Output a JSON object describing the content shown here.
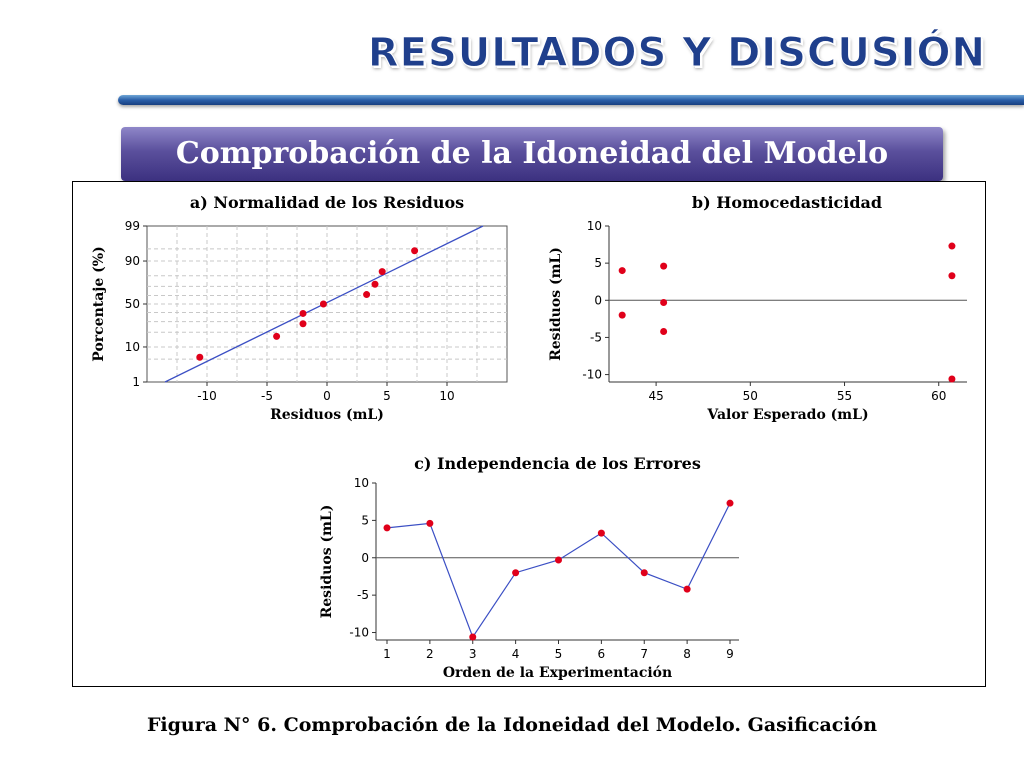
{
  "header": {
    "title": "RESULTADOS Y DISCUSIÓN",
    "subtitle": "Comprobación de la Idoneidad del Modelo"
  },
  "caption": "Figura N° 6. Comprobación de la Idoneidad del Modelo. Gasificación",
  "colors": {
    "title": "#1f3f8c",
    "banner": "#4d4392",
    "point": "#e0001a",
    "line": "#3b4fc4",
    "grid": "#c8c8c8"
  },
  "chart_data": [
    {
      "type": "scatter",
      "title": "a) Normalidad de los Residuos",
      "xlabel": "Residuos (mL)",
      "ylabel": "Porcentaje (%)",
      "scale_y": "normal-probability",
      "xlim": [
        -15,
        15
      ],
      "xticks": [
        -10,
        -5,
        0,
        5,
        10
      ],
      "ylim": [
        1,
        99
      ],
      "yticks": [
        1,
        10,
        50,
        90,
        99
      ],
      "grid": true,
      "points": [
        {
          "x": -10.6,
          "y": 5.6
        },
        {
          "x": -4.2,
          "y": 16.7
        },
        {
          "x": -2.0,
          "y": 27.8
        },
        {
          "x": -2.0,
          "y": 38.9
        },
        {
          "x": -0.3,
          "y": 50.0
        },
        {
          "x": 3.3,
          "y": 61.1
        },
        {
          "x": 4.0,
          "y": 72.2
        },
        {
          "x": 4.6,
          "y": 83.3
        },
        {
          "x": 7.3,
          "y": 94.4
        }
      ],
      "fit_line": {
        "x": [
          -13.5,
          13.0
        ],
        "y": [
          1,
          99
        ]
      }
    },
    {
      "type": "scatter",
      "title": "b) Homocedasticidad",
      "xlabel": "Valor Esperado (mL)",
      "ylabel": "Residuos (mL)",
      "xlim": [
        42.5,
        61.5
      ],
      "xticks": [
        45,
        50,
        55,
        60
      ],
      "ylim": [
        -11,
        10
      ],
      "yticks": [
        10,
        5,
        0,
        -5,
        -10
      ],
      "grid": false,
      "reference_line": 0,
      "points": [
        {
          "x": 43.2,
          "y": 4.0
        },
        {
          "x": 43.2,
          "y": -2.0
        },
        {
          "x": 45.4,
          "y": 4.6
        },
        {
          "x": 45.4,
          "y": -0.3
        },
        {
          "x": 45.4,
          "y": -4.2
        },
        {
          "x": 60.7,
          "y": 7.3
        },
        {
          "x": 60.7,
          "y": 3.3
        },
        {
          "x": 60.7,
          "y": -10.6
        }
      ]
    },
    {
      "type": "line",
      "title": "c) Independencia de los Errores",
      "xlabel": "Orden de la Experimentación",
      "ylabel": "Residuos (mL)",
      "xlim": [
        1,
        9
      ],
      "xticks": [
        1,
        2,
        3,
        4,
        5,
        6,
        7,
        8,
        9
      ],
      "ylim": [
        -11,
        10
      ],
      "yticks": [
        10,
        5,
        0,
        -5,
        -10
      ],
      "grid": false,
      "reference_line": 0,
      "x": [
        1,
        2,
        3,
        4,
        5,
        6,
        7,
        8,
        9
      ],
      "y": [
        4.0,
        4.6,
        -10.6,
        -2.0,
        -0.3,
        3.3,
        -2.0,
        -4.2,
        7.3
      ]
    }
  ]
}
